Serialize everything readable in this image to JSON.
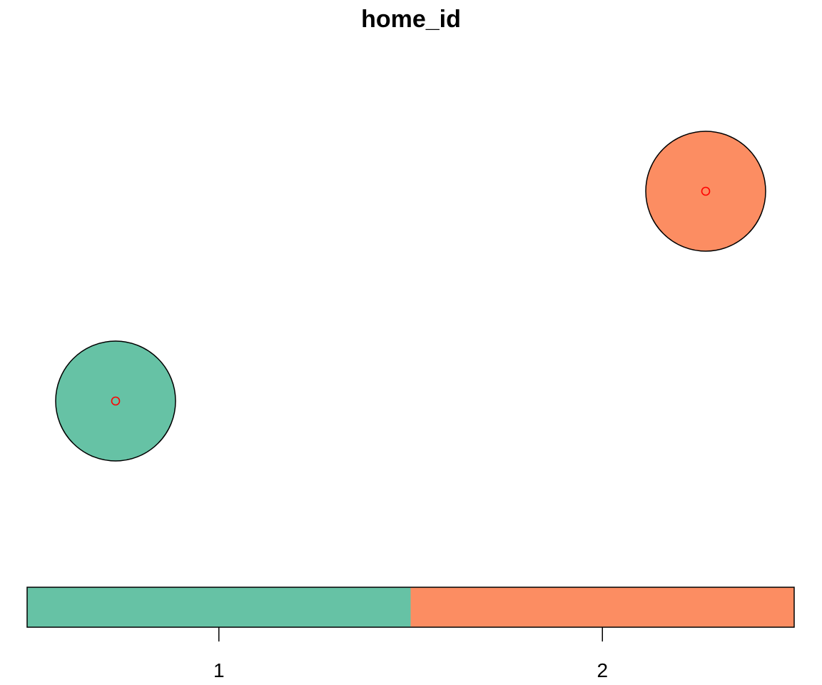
{
  "chart_data": {
    "type": "scatter",
    "title": "home_id",
    "marker_color": "#FF0000",
    "outline_color": "#000000",
    "features": [
      {
        "id": 1,
        "color": "#66C2A5"
      },
      {
        "id": 2,
        "color": "#FC8D62"
      }
    ],
    "legend": {
      "placement": "bottom",
      "categories": [
        "1",
        "2"
      ],
      "colors": [
        "#66C2A5",
        "#FC8D62"
      ]
    }
  }
}
